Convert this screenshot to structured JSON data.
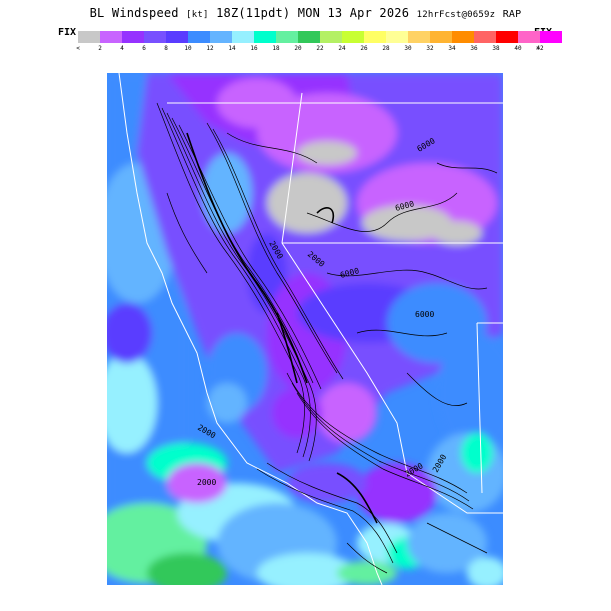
{
  "header": {
    "title_main": "BL Windspeed",
    "title_units": "[kt]",
    "title_time": "18Z(11pdt) MON 13 Apr 2026",
    "title_fcst": "12hrFcst@0659z",
    "title_model": "RAP"
  },
  "colorbar": {
    "fix_left": "FIX",
    "fix_right": "FIX",
    "below_symbol": "<",
    "above_symbol": ">",
    "colors": [
      "#c8c8c8",
      "#c864ff",
      "#9632ff",
      "#7850ff",
      "#5a3cff",
      "#3c8cff",
      "#64b4ff",
      "#96f0ff",
      "#00ffcc",
      "#64f0a0",
      "#32c85a",
      "#b4f064",
      "#c8ff32",
      "#ffff64",
      "#ffff96",
      "#ffd264",
      "#ffb432",
      "#ff8c00",
      "#ff6464",
      "#ff0000",
      "#ff64c8",
      "#ff00ff"
    ],
    "tick_labels": [
      "2",
      "4",
      "6",
      "8",
      "10",
      "12",
      "14",
      "16",
      "18",
      "20",
      "22",
      "24",
      "26",
      "28",
      "30",
      "32",
      "34",
      "36",
      "38",
      "40",
      "42"
    ]
  },
  "map": {
    "contour_labels": [
      "6000",
      "6000",
      "6000",
      "6000",
      "2000",
      "2000",
      "2000",
      "2000",
      "2000",
      "2000"
    ]
  }
}
